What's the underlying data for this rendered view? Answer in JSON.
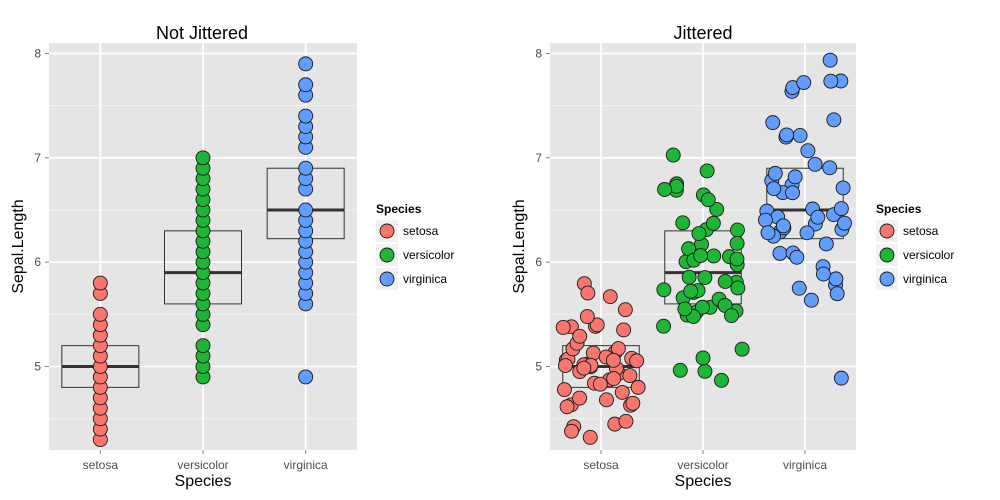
{
  "chart_data": [
    {
      "type": "boxplot-scatter",
      "title": "Not Jittered",
      "xlabel": "Species",
      "ylabel": "Sepal.Length",
      "categories": [
        "setosa",
        "versicolor",
        "virginica"
      ],
      "yticks": [
        5,
        6,
        7,
        8
      ],
      "ylim": [
        4.2,
        8.1
      ],
      "jitter": false,
      "legend": {
        "title": "Species",
        "position": "right",
        "items": [
          "setosa",
          "versicolor",
          "virginica"
        ]
      },
      "boxes": [
        {
          "category": "setosa",
          "q1": 4.8,
          "median": 5.0,
          "q3": 5.2
        },
        {
          "category": "versicolor",
          "q1": 5.6,
          "median": 5.9,
          "q3": 6.3
        },
        {
          "category": "virginica",
          "q1": 6.225,
          "median": 6.5,
          "q3": 6.9
        }
      ],
      "points": [
        {
          "category": "setosa",
          "values": [
            4.3,
            4.4,
            4.5,
            4.6,
            4.7,
            4.8,
            4.9,
            5.0,
            5.1,
            5.2,
            5.3,
            5.4,
            5.5,
            5.7,
            5.8
          ]
        },
        {
          "category": "versicolor",
          "values": [
            4.9,
            5.0,
            5.1,
            5.2,
            5.4,
            5.5,
            5.6,
            5.7,
            5.8,
            5.9,
            6.0,
            6.1,
            6.2,
            6.3,
            6.4,
            6.5,
            6.6,
            6.7,
            6.8,
            6.9,
            7.0
          ]
        },
        {
          "category": "virginica",
          "values": [
            4.9,
            5.6,
            5.7,
            5.8,
            5.9,
            6.0,
            6.1,
            6.2,
            6.3,
            6.4,
            6.5,
            6.7,
            6.8,
            6.9,
            7.1,
            7.2,
            7.3,
            7.4,
            7.6,
            7.7,
            7.9
          ]
        }
      ]
    },
    {
      "type": "boxplot-scatter",
      "title": "Jittered",
      "xlabel": "Species",
      "ylabel": "Sepal.Length",
      "categories": [
        "setosa",
        "versicolor",
        "virginica"
      ],
      "yticks": [
        5,
        6,
        7,
        8
      ],
      "ylim": [
        4.2,
        8.1
      ],
      "jitter": true,
      "legend": {
        "title": "Species",
        "position": "right",
        "items": [
          "setosa",
          "versicolor",
          "virginica"
        ]
      },
      "boxes": [
        {
          "category": "setosa",
          "q1": 4.8,
          "median": 5.0,
          "q3": 5.2
        },
        {
          "category": "versicolor",
          "q1": 5.6,
          "median": 5.9,
          "q3": 6.3
        },
        {
          "category": "virginica",
          "q1": 6.225,
          "median": 6.5,
          "q3": 6.9
        }
      ],
      "points": [
        {
          "category": "setosa",
          "values": [
            5.1,
            4.9,
            4.7,
            4.6,
            5.0,
            5.4,
            4.6,
            5.0,
            4.4,
            4.9,
            5.4,
            4.8,
            4.8,
            4.3,
            5.8,
            5.7,
            5.4,
            5.1,
            5.7,
            5.1,
            5.4,
            5.1,
            4.6,
            5.1,
            4.8,
            5.0,
            5.0,
            5.2,
            5.2,
            4.7,
            4.8,
            5.4,
            5.2,
            5.5,
            4.9,
            5.0,
            5.5,
            4.9,
            4.4,
            5.1,
            5.0,
            4.5,
            4.4,
            5.0,
            5.1,
            4.8,
            5.1,
            4.6,
            5.3,
            5.0
          ]
        },
        {
          "category": "versicolor",
          "values": [
            7.0,
            6.4,
            6.9,
            5.5,
            6.5,
            5.7,
            6.3,
            4.9,
            6.6,
            5.2,
            5.0,
            5.9,
            6.0,
            6.1,
            5.6,
            6.7,
            5.6,
            5.8,
            6.2,
            5.6,
            5.9,
            6.1,
            6.3,
            6.1,
            6.4,
            6.6,
            6.8,
            6.7,
            6.0,
            5.7,
            5.5,
            5.5,
            5.8,
            6.0,
            5.4,
            6.0,
            6.7,
            6.3,
            5.6,
            5.5,
            5.5,
            6.1,
            5.8,
            5.0,
            5.6,
            5.7,
            5.7,
            6.2,
            5.1,
            5.7
          ]
        },
        {
          "category": "virginica",
          "values": [
            6.3,
            5.8,
            7.1,
            6.3,
            6.5,
            7.6,
            4.9,
            7.3,
            6.7,
            7.2,
            6.5,
            6.4,
            6.8,
            5.7,
            5.8,
            6.4,
            6.5,
            7.7,
            7.7,
            6.0,
            6.9,
            5.6,
            7.7,
            6.3,
            6.7,
            7.2,
            6.2,
            6.1,
            6.4,
            7.2,
            7.4,
            7.9,
            6.4,
            6.3,
            6.1,
            7.7,
            6.3,
            6.4,
            6.0,
            6.9,
            6.7,
            6.9,
            5.8,
            6.8,
            6.7,
            6.7,
            6.3,
            6.5,
            6.2,
            5.9
          ]
        }
      ]
    }
  ],
  "colors": {
    "setosa": "#F8766D",
    "versicolor": "#1DB636",
    "virginica": "#619CFF",
    "panel_bg": "#E5E5E5",
    "grid_major": "#FFFFFF",
    "grid_minor": "#F2F2F2",
    "point_stroke": "#1A1A1A",
    "box_stroke": "#333333"
  }
}
